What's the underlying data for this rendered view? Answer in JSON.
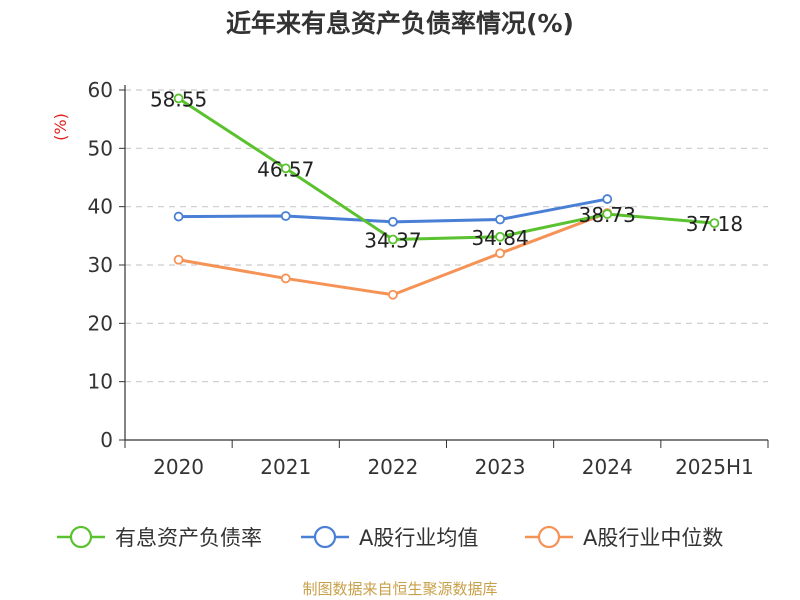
{
  "chart_data": {
    "type": "line",
    "title": "近年来有息资产负债率情况(%)",
    "ylabel": "(%)",
    "xlabel": "",
    "ylim": [
      0,
      60
    ],
    "yticks": [
      0,
      10,
      20,
      30,
      40,
      50,
      60
    ],
    "grid": true,
    "legend_position": "bottom",
    "categories": [
      "2020",
      "2021",
      "2022",
      "2023",
      "2024",
      "2025H1"
    ],
    "series": [
      {
        "name": "有息资产负债率",
        "color": "#5ac12f",
        "values": [
          58.55,
          46.57,
          34.37,
          34.84,
          38.73,
          37.18
        ],
        "labels": [
          "58.55",
          "46.57",
          "34.37",
          "34.84",
          "38.73",
          "37.18"
        ]
      },
      {
        "name": "A股行业均值",
        "color": "#4a7fd6",
        "values": [
          38.3,
          38.4,
          37.4,
          37.8,
          41.3,
          null
        ]
      },
      {
        "name": "A股行业中位数",
        "color": "#f59356",
        "values": [
          30.9,
          27.7,
          24.9,
          32.0,
          38.9,
          null
        ]
      }
    ]
  },
  "source": "制图数据来自恒生聚源数据库"
}
